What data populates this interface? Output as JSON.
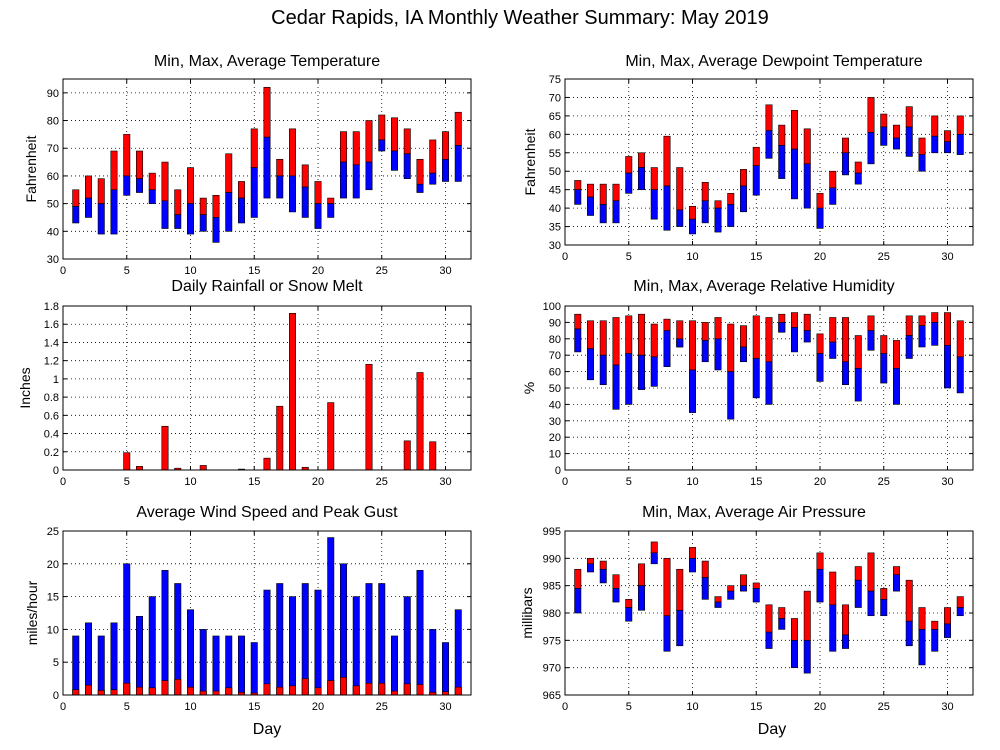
{
  "title": "Cedar Rapids, IA Monthly Weather Summary: May 2019",
  "colors": {
    "upper": "#ff0000",
    "lower": "#0000ff",
    "frame": "#000000"
  },
  "chart_data": [
    {
      "id": "temp",
      "type": "bar",
      "title": "Min, Max, Average Temperature",
      "ylabel": "Fahrenheit",
      "xlabel": "",
      "xlim": [
        0,
        32
      ],
      "xticks": [
        0,
        5,
        10,
        15,
        20,
        25,
        30
      ],
      "ylim": [
        30,
        95
      ],
      "yticks": [
        30,
        40,
        50,
        60,
        70,
        80,
        90
      ],
      "grid": true,
      "x": [
        1,
        2,
        3,
        4,
        5,
        6,
        7,
        8,
        9,
        10,
        11,
        12,
        13,
        14,
        15,
        16,
        17,
        18,
        19,
        20,
        21,
        22,
        23,
        24,
        25,
        26,
        27,
        28,
        29,
        30,
        31
      ],
      "series": [
        {
          "key": "min",
          "values": [
            43,
            45,
            39,
            39,
            53,
            54,
            50,
            41,
            41,
            39,
            40,
            36,
            40,
            43,
            45,
            52,
            52,
            47,
            45,
            41,
            45,
            52,
            52,
            55,
            69,
            62,
            59,
            54,
            57,
            58,
            58
          ]
        },
        {
          "key": "avg",
          "values": [
            49,
            52,
            50,
            55,
            60,
            59,
            55,
            51,
            46,
            50,
            46,
            45,
            54,
            52,
            63,
            74,
            60,
            60,
            56,
            50,
            50,
            65,
            64,
            65,
            73,
            69,
            68,
            57,
            61,
            66,
            71
          ]
        },
        {
          "key": "max",
          "values": [
            55,
            60,
            59,
            69,
            75,
            69,
            61,
            65,
            55,
            63,
            52,
            53,
            68,
            58,
            77,
            92,
            66,
            77,
            64,
            58,
            52,
            76,
            76,
            80,
            82,
            81,
            77,
            66,
            73,
            76,
            83
          ]
        }
      ]
    },
    {
      "id": "dew",
      "type": "bar",
      "title": "Min, Max, Average Dewpoint Temperature",
      "ylabel": "Fahrenheit",
      "xlabel": "",
      "xlim": [
        0,
        32
      ],
      "xticks": [
        0,
        5,
        10,
        15,
        20,
        25,
        30
      ],
      "ylim": [
        30,
        75
      ],
      "yticks": [
        30,
        35,
        40,
        45,
        50,
        55,
        60,
        65,
        70,
        75
      ],
      "grid": true,
      "x": [
        1,
        2,
        3,
        4,
        5,
        6,
        7,
        8,
        9,
        10,
        11,
        12,
        13,
        14,
        15,
        16,
        17,
        18,
        19,
        20,
        21,
        22,
        23,
        24,
        25,
        26,
        27,
        28,
        29,
        30,
        31
      ],
      "series": [
        {
          "key": "min",
          "values": [
            41,
            38,
            36,
            36,
            44,
            45,
            37,
            34,
            35,
            33,
            36,
            33.5,
            35,
            39,
            43.5,
            53.5,
            48,
            42.5,
            40,
            34.5,
            41,
            49,
            46.5,
            52,
            57,
            56,
            54,
            50,
            55,
            55,
            54.5
          ]
        },
        {
          "key": "avg",
          "values": [
            45,
            43,
            41,
            42,
            49.5,
            51,
            45,
            46,
            39.5,
            37,
            42,
            40,
            41,
            46,
            51.5,
            61,
            57,
            56,
            52,
            40,
            45.5,
            55,
            49.5,
            60.5,
            62,
            59,
            62,
            54.5,
            59.5,
            58,
            60
          ]
        },
        {
          "key": "max",
          "values": [
            47.5,
            46.5,
            46.5,
            46.5,
            54,
            55,
            51,
            59.5,
            51,
            40.5,
            47,
            42,
            44,
            50.5,
            56.5,
            68,
            62.5,
            66.5,
            61.5,
            44,
            50,
            59,
            52.5,
            70,
            65.5,
            62.5,
            67.5,
            59,
            65,
            61,
            65
          ]
        }
      ]
    },
    {
      "id": "rain",
      "type": "bar",
      "title": "Daily Rainfall or Snow Melt",
      "ylabel": "Inches",
      "xlabel": "",
      "xlim": [
        0,
        32
      ],
      "xticks": [
        0,
        5,
        10,
        15,
        20,
        25,
        30
      ],
      "ylim": [
        0,
        1.8
      ],
      "yticks": [
        0,
        0.2,
        0.4,
        0.6,
        0.8,
        1,
        1.2,
        1.4,
        1.6,
        1.8
      ],
      "grid": true,
      "x": [
        1,
        2,
        3,
        4,
        5,
        6,
        7,
        8,
        9,
        10,
        11,
        12,
        13,
        14,
        15,
        16,
        17,
        18,
        19,
        20,
        21,
        22,
        23,
        24,
        25,
        26,
        27,
        28,
        29,
        30,
        31
      ],
      "series": [
        {
          "key": "rain",
          "values": [
            0,
            0,
            0,
            0,
            0.19,
            0.04,
            0,
            0.48,
            0.02,
            0,
            0.05,
            0,
            0,
            0.01,
            0,
            0.13,
            0.7,
            1.72,
            0.03,
            0,
            0.74,
            0,
            0,
            1.16,
            0,
            0,
            0.32,
            1.07,
            0.31,
            0,
            0
          ]
        }
      ]
    },
    {
      "id": "rh",
      "type": "bar",
      "title": "Min, Max, Average Relative Humidity",
      "ylabel": "%",
      "xlabel": "",
      "xlim": [
        0,
        32
      ],
      "xticks": [
        0,
        5,
        10,
        15,
        20,
        25,
        30
      ],
      "ylim": [
        0,
        100
      ],
      "yticks": [
        0,
        10,
        20,
        30,
        40,
        50,
        60,
        70,
        80,
        90,
        100
      ],
      "grid": true,
      "x": [
        1,
        2,
        3,
        4,
        5,
        6,
        7,
        8,
        9,
        10,
        11,
        12,
        13,
        14,
        15,
        16,
        17,
        18,
        19,
        20,
        21,
        22,
        23,
        24,
        25,
        26,
        27,
        28,
        29,
        30,
        31
      ],
      "series": [
        {
          "key": "min",
          "values": [
            72,
            55,
            52,
            37,
            40,
            49,
            51,
            63,
            80,
            35,
            66,
            61,
            31,
            66,
            44,
            40,
            90,
            72,
            78,
            54,
            68,
            52,
            42,
            73,
            53,
            40,
            68,
            75,
            76,
            50,
            47
          ]
        },
        {
          "key": "avg",
          "values": [
            86,
            74,
            70,
            64,
            71,
            70,
            69,
            85,
            75,
            61,
            79,
            80,
            60,
            75,
            68,
            66,
            84,
            87,
            85,
            71,
            78,
            66,
            62,
            85,
            71,
            62,
            82,
            88,
            90,
            76,
            69
          ]
        },
        {
          "key": "max",
          "values": [
            95,
            91,
            91,
            93,
            94,
            95,
            89,
            92,
            91,
            91,
            90,
            93,
            89,
            88,
            94,
            93,
            95,
            96,
            95,
            83,
            93,
            93,
            82,
            94,
            82,
            79,
            94,
            94,
            96,
            96,
            91
          ]
        }
      ]
    },
    {
      "id": "wind",
      "type": "bar",
      "title": "Average Wind Speed and Peak Gust",
      "ylabel": "miles/hour",
      "xlabel": "Day",
      "xlim": [
        0,
        32
      ],
      "xticks": [
        0,
        5,
        10,
        15,
        20,
        25,
        30
      ],
      "ylim": [
        0,
        25
      ],
      "yticks": [
        0,
        5,
        10,
        15,
        20,
        25
      ],
      "grid": true,
      "x": [
        1,
        2,
        3,
        4,
        5,
        6,
        7,
        8,
        9,
        10,
        11,
        12,
        13,
        14,
        15,
        16,
        17,
        18,
        19,
        20,
        21,
        22,
        23,
        24,
        25,
        26,
        27,
        28,
        29,
        30,
        31
      ],
      "series": [
        {
          "key": "avg",
          "values": [
            0.8,
            1.5,
            0.7,
            0.8,
            1.8,
            1.2,
            1.1,
            2.2,
            2.4,
            1.2,
            0.6,
            0.6,
            1.1,
            0.4,
            0.3,
            1.7,
            1.2,
            1.4,
            2.5,
            1.1,
            2.2,
            2.7,
            1.4,
            1.8,
            1.8,
            0.6,
            1.7,
            1.6,
            0.4,
            0.5,
            1.2
          ]
        },
        {
          "key": "gust",
          "values": [
            9,
            11,
            9,
            11,
            20,
            12,
            15,
            19,
            17,
            13,
            10,
            9,
            9,
            9,
            8,
            16,
            17,
            15,
            17,
            16,
            24,
            20,
            15,
            17,
            17,
            9,
            15,
            19,
            10,
            8,
            13
          ]
        }
      ]
    },
    {
      "id": "pres",
      "type": "bar",
      "title": "Min, Max, Average Air Pressure",
      "ylabel": "millibars",
      "xlabel": "Day",
      "xlim": [
        0,
        32
      ],
      "xticks": [
        0,
        5,
        10,
        15,
        20,
        25,
        30
      ],
      "ylim": [
        965,
        995
      ],
      "yticks": [
        965,
        970,
        975,
        980,
        985,
        990,
        995
      ],
      "grid": true,
      "x": [
        1,
        2,
        3,
        4,
        5,
        6,
        7,
        8,
        9,
        10,
        11,
        12,
        13,
        14,
        15,
        16,
        17,
        18,
        19,
        20,
        21,
        22,
        23,
        24,
        25,
        26,
        27,
        28,
        29,
        30,
        31
      ],
      "series": [
        {
          "key": "min",
          "values": [
            980,
            987.5,
            985.5,
            982,
            978.5,
            980.5,
            989,
            973,
            974,
            987.5,
            982.5,
            981,
            982.5,
            984,
            982,
            973.5,
            977,
            970,
            969,
            982,
            973,
            973.5,
            981,
            979.5,
            979.5,
            984,
            974,
            970.5,
            973,
            975.5,
            979.5
          ]
        },
        {
          "key": "avg",
          "values": [
            984.5,
            989,
            988,
            984.5,
            981,
            985,
            991,
            979.5,
            980.5,
            990,
            986.5,
            982,
            984,
            985,
            984.5,
            976.5,
            979,
            975,
            975,
            988,
            981.5,
            976,
            986,
            984,
            982.5,
            987,
            978.5,
            977,
            977,
            978,
            981
          ]
        },
        {
          "key": "max",
          "values": [
            988,
            990,
            989.5,
            987,
            982.5,
            989,
            993,
            990,
            988,
            992,
            989.5,
            983,
            985,
            987,
            985.5,
            981.5,
            981,
            979,
            984,
            991,
            987.5,
            981.5,
            988.5,
            991,
            984.5,
            988.5,
            986,
            981,
            978.5,
            981,
            983
          ]
        }
      ]
    }
  ]
}
